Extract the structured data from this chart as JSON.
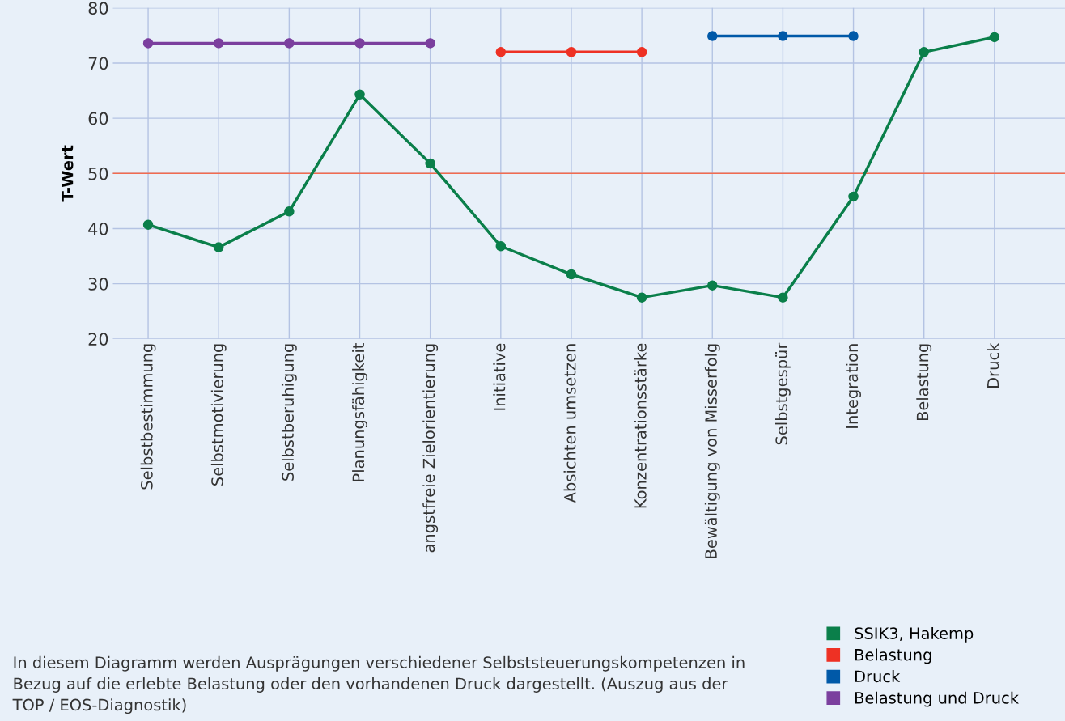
{
  "chart_data": {
    "type": "line",
    "ylabel": "T-Wert",
    "categories": [
      "Selbstbestimmung",
      "Selbstmotivierung",
      "Selbstberuhigung",
      "Planungsfähigkeit",
      "angstfreie Zielorientierung",
      "Initiative",
      "Absichten umsetzen",
      "Konzentrationsstärke",
      "Bewältigung von Misserfolg",
      "Selbstgespür",
      "Integration",
      "Belastung",
      "Druck"
    ],
    "series": [
      {
        "name": "SSIK3, Hakemp",
        "color": "#0a7f4a",
        "values": [
          40.7,
          36.6,
          43.1,
          64.3,
          51.8,
          36.8,
          31.7,
          27.5,
          29.7,
          27.5,
          45.8,
          72.0,
          74.7
        ]
      },
      {
        "name": "Belastung",
        "color": "#ee3124",
        "values": [
          null,
          null,
          null,
          null,
          null,
          72.0,
          72.0,
          72.0,
          null,
          null,
          null,
          null,
          null
        ]
      },
      {
        "name": "Druck",
        "color": "#0059a8",
        "values": [
          null,
          null,
          null,
          null,
          null,
          null,
          null,
          null,
          74.9,
          74.9,
          74.9,
          null,
          null
        ]
      },
      {
        "name": "Belastung und Druck",
        "color": "#7b3f9e",
        "values": [
          73.6,
          73.6,
          73.6,
          73.6,
          73.6,
          null,
          null,
          null,
          null,
          null,
          null,
          null,
          null
        ]
      }
    ],
    "ylim": [
      20,
      80
    ],
    "yticks": [
      20,
      30,
      40,
      50,
      60,
      70,
      80
    ],
    "grid": true,
    "marker": "circle",
    "line_style": "solid",
    "legend": "bottom right",
    "ref_lines": [
      {
        "axis": "y",
        "value": 50,
        "color": "#f26b4f"
      }
    ],
    "annotations": [
      "In diesem Diagramm werden Ausprägungen verschiedener Selbststeuerungskompetenzen in Bezug auf die erlebte Belastung oder den vorhandenen Druck dargestellt. (Auszug aus der TOP / EOS-Diagnostik)"
    ]
  }
}
